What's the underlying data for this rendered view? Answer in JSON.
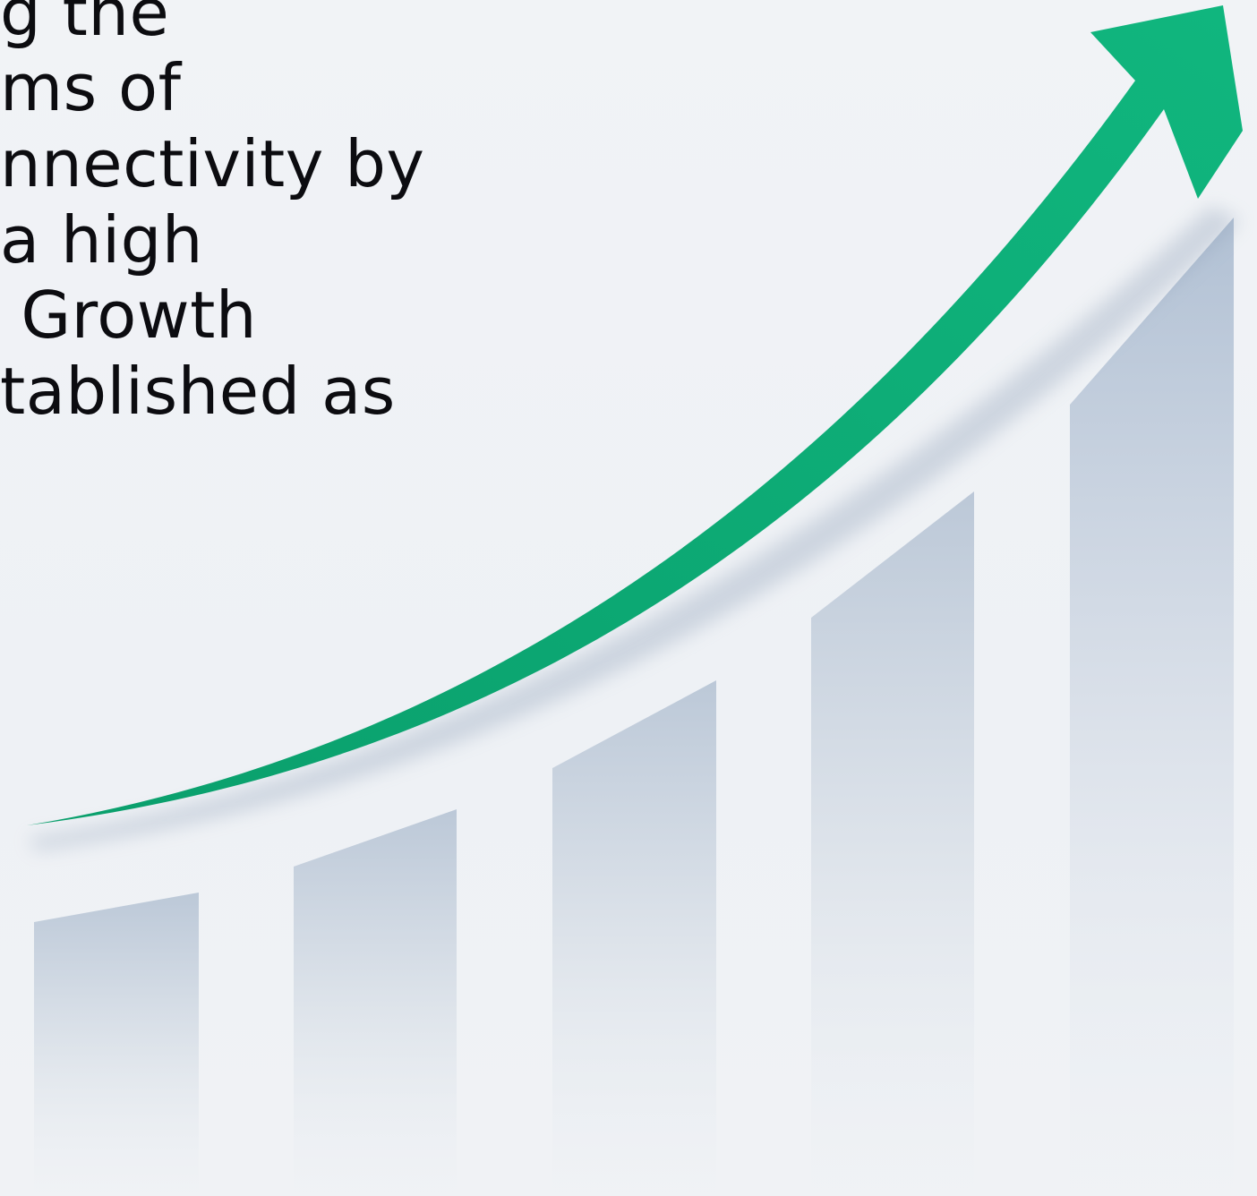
{
  "headline": {
    "lines": [
      "g the",
      "ms of",
      "nnectivity by",
      "a high",
      " Growth",
      "tablished as"
    ]
  },
  "graphic": {
    "arrow_icon": "trend-up-arrow-icon",
    "arrow_color": "#0db07a",
    "bar_color": "#c9d3e0",
    "background_color": "#f0f2f5"
  }
}
